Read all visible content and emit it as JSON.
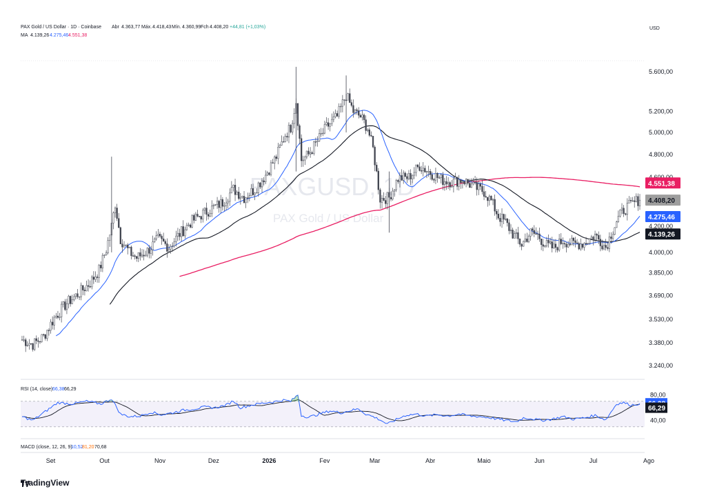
{
  "header": {
    "symbol_title": "PAX Gold / US Dollar · 1D · Coinbase",
    "open_label": "Abr",
    "open_value": "4.363,77",
    "high_label": "Máx.",
    "high_value": "4.418,43",
    "low_label": "Mín.",
    "low_value": "4.360,99",
    "close_label": "Fch",
    "close_value": "4.408,20",
    "change": "+44,81 (+1,03%)",
    "ma_label": "MA",
    "ma_values": [
      "4.139,26",
      "4.275,46",
      "4.551,38"
    ],
    "currency": "USD"
  },
  "watermark": {
    "ticker": "PAXGUSD, 1D",
    "name": "PAX Gold / US Dollar"
  },
  "colors": {
    "up": "#26a69a",
    "down": "#ef5350",
    "candle": "#434651",
    "ma_fast": "#2962ff",
    "ma_mid": "#131722",
    "ma_slow": "#e91e63",
    "rsi": "#2962ff",
    "rsi_ma": "#131722"
  },
  "chart_data": [
    {
      "type": "candlestick",
      "title": "PAX Gold / US Dollar",
      "price_axis_labels": [
        "5.600,00",
        "5.200,00",
        "5.000,00",
        "4.800,00",
        "4.600,00",
        "4.200,00",
        "4.000,00",
        "3.850,00",
        "3.690,00",
        "3.530,00",
        "3.380,00",
        "3.240,00"
      ],
      "price_ticks": [
        5600,
        5200,
        5000,
        4800,
        4600,
        4200,
        4000,
        3850,
        3690,
        3530,
        3380,
        3240
      ],
      "ylim": [
        3240,
        5700
      ],
      "scale": "log",
      "x_labels": [
        "Set",
        "Out",
        "Nov",
        "Dez",
        "2026",
        "Fev",
        "Mar",
        "Abr",
        "Maio",
        "Jun",
        "Jul",
        "Ago"
      ],
      "x_label_days": [
        16,
        46,
        77,
        107,
        138,
        169,
        197,
        228,
        258,
        289,
        319,
        350
      ],
      "close_key_points": [
        [
          0,
          3400
        ],
        [
          6,
          3370
        ],
        [
          12,
          3420
        ],
        [
          18,
          3540
        ],
        [
          25,
          3640
        ],
        [
          32,
          3710
        ],
        [
          38,
          3780
        ],
        [
          43,
          3870
        ],
        [
          47,
          4020
        ],
        [
          50,
          4200
        ],
        [
          52,
          4380
        ],
        [
          55,
          4100
        ],
        [
          60,
          4000
        ],
        [
          64,
          3960
        ],
        [
          70,
          4010
        ],
        [
          76,
          4100
        ],
        [
          82,
          4040
        ],
        [
          88,
          4140
        ],
        [
          94,
          4230
        ],
        [
          100,
          4290
        ],
        [
          106,
          4340
        ],
        [
          112,
          4390
        ],
        [
          118,
          4500
        ],
        [
          124,
          4430
        ],
        [
          130,
          4500
        ],
        [
          136,
          4620
        ],
        [
          142,
          4780
        ],
        [
          147,
          4980
        ],
        [
          150,
          5050
        ],
        [
          153,
          5300
        ],
        [
          156,
          4750
        ],
        [
          160,
          4800
        ],
        [
          165,
          4920
        ],
        [
          170,
          5050
        ],
        [
          176,
          5150
        ],
        [
          181,
          5360
        ],
        [
          185,
          5200
        ],
        [
          189,
          5150
        ],
        [
          193,
          5040
        ],
        [
          196,
          4850
        ],
        [
          200,
          4420
        ],
        [
          205,
          4430
        ],
        [
          210,
          4590
        ],
        [
          216,
          4600
        ],
        [
          222,
          4700
        ],
        [
          228,
          4640
        ],
        [
          234,
          4580
        ],
        [
          240,
          4560
        ],
        [
          246,
          4580
        ],
        [
          252,
          4520
        ],
        [
          258,
          4480
        ],
        [
          262,
          4400
        ],
        [
          266,
          4280
        ],
        [
          270,
          4230
        ],
        [
          274,
          4140
        ],
        [
          279,
          4060
        ],
        [
          284,
          4150
        ],
        [
          288,
          4130
        ],
        [
          292,
          4060
        ],
        [
          297,
          4030
        ],
        [
          302,
          4090
        ],
        [
          308,
          4060
        ],
        [
          314,
          4070
        ],
        [
          320,
          4130
        ],
        [
          326,
          4040
        ],
        [
          332,
          4240
        ],
        [
          336,
          4330
        ],
        [
          340,
          4370
        ],
        [
          344,
          4408
        ]
      ],
      "price_badges": [
        {
          "value": "4.551,38",
          "price": 4551.38,
          "color": "#e91e63"
        },
        {
          "value": "4.408,20",
          "price": 4408.2,
          "color": "#9e9e9e"
        },
        {
          "value": "4.275,46",
          "price": 4275.46,
          "color": "#2962ff"
        },
        {
          "value": "4.139,26",
          "price": 4139.26,
          "color": "#131722"
        }
      ],
      "moving_averages": [
        "MA fast",
        "MA mid",
        "MA slow"
      ]
    },
    {
      "type": "line",
      "title": "RSI (14, close)",
      "rsi_label": "RSI (14, close)",
      "rsi_values_text": [
        "66,38",
        "66,29"
      ],
      "ylim": [
        20,
        85
      ],
      "levels": [
        70,
        30
      ],
      "axis_labels": [
        "80,00",
        "40,00"
      ],
      "rsi_key_points": [
        [
          0,
          46
        ],
        [
          6,
          40
        ],
        [
          12,
          52
        ],
        [
          20,
          68
        ],
        [
          28,
          66
        ],
        [
          36,
          70
        ],
        [
          44,
          66
        ],
        [
          50,
          74
        ],
        [
          55,
          50
        ],
        [
          60,
          46
        ],
        [
          66,
          47
        ],
        [
          72,
          53
        ],
        [
          78,
          49
        ],
        [
          84,
          52
        ],
        [
          90,
          56
        ],
        [
          96,
          58
        ],
        [
          102,
          61
        ],
        [
          108,
          60
        ],
        [
          114,
          64
        ],
        [
          118,
          71
        ],
        [
          122,
          60
        ],
        [
          128,
          64
        ],
        [
          134,
          67
        ],
        [
          140,
          69
        ],
        [
          146,
          72
        ],
        [
          150,
          70
        ],
        [
          154,
          80
        ],
        [
          156,
          48
        ],
        [
          160,
          45
        ],
        [
          166,
          50
        ],
        [
          172,
          55
        ],
        [
          178,
          52
        ],
        [
          184,
          56
        ],
        [
          188,
          58
        ],
        [
          192,
          50
        ],
        [
          196,
          46
        ],
        [
          200,
          41
        ],
        [
          204,
          34
        ],
        [
          208,
          40
        ],
        [
          214,
          48
        ],
        [
          220,
          50
        ],
        [
          226,
          47
        ],
        [
          232,
          49
        ],
        [
          238,
          47
        ],
        [
          244,
          50
        ],
        [
          250,
          47
        ],
        [
          256,
          46
        ],
        [
          262,
          44
        ],
        [
          266,
          42
        ],
        [
          270,
          40
        ],
        [
          276,
          38
        ],
        [
          280,
          44
        ],
        [
          284,
          43
        ],
        [
          290,
          40
        ],
        [
          296,
          42
        ],
        [
          302,
          46
        ],
        [
          308,
          42
        ],
        [
          314,
          44
        ],
        [
          320,
          48
        ],
        [
          326,
          41
        ],
        [
          332,
          66
        ],
        [
          336,
          68
        ],
        [
          340,
          64
        ],
        [
          344,
          66
        ]
      ]
    },
    {
      "type": "line",
      "title": "MACD (close, 12, 26, 9)",
      "macd_label": "MACD (close, 12, 26, 9)",
      "macd_values_text": [
        "10,52",
        "81,20",
        "70,68"
      ]
    }
  ],
  "brand": {
    "name": "TradingView",
    "logo": "tradingview-logo"
  }
}
